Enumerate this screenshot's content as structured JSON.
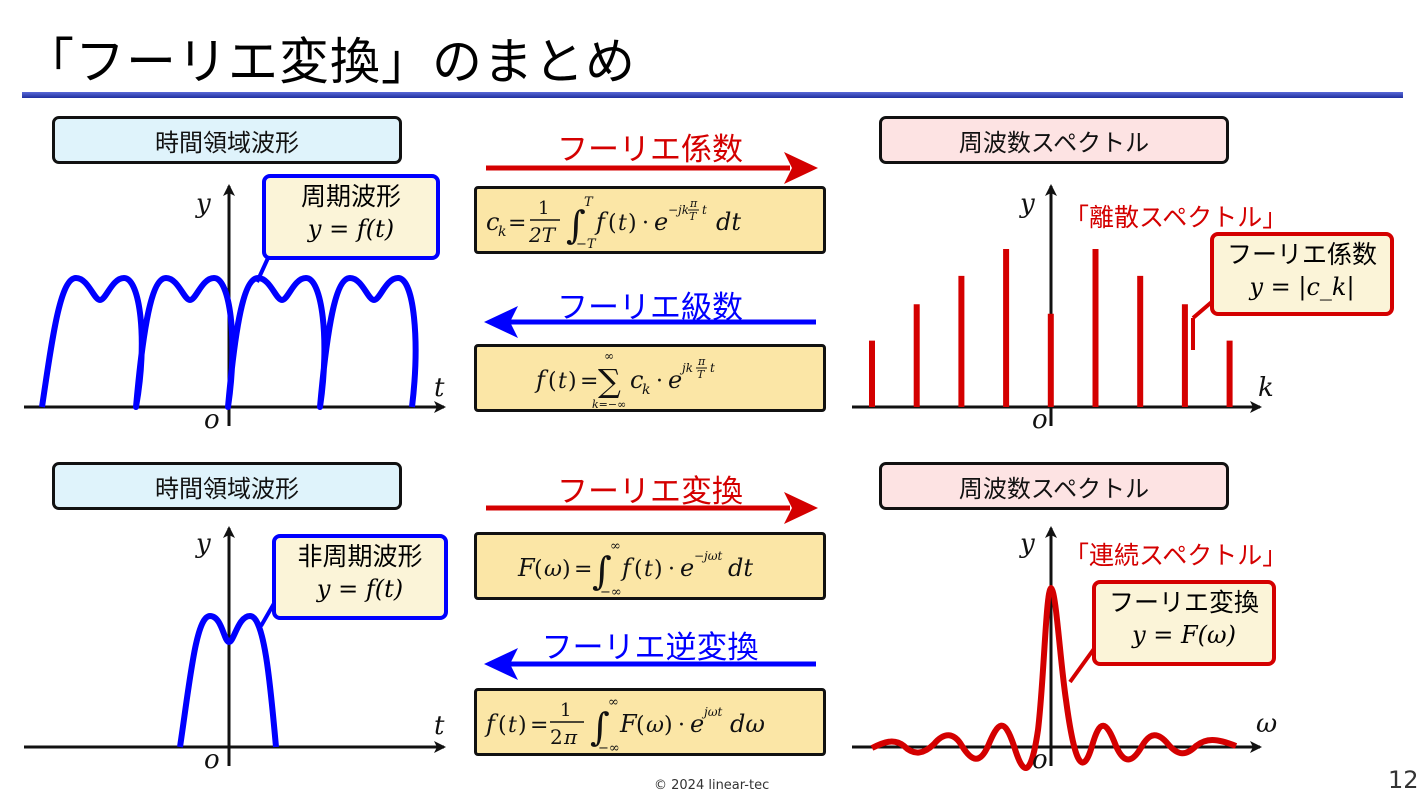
{
  "title": "「フーリエ変換」のまとめ",
  "footer": {
    "copyright": "© 2024 linear-tec",
    "page": "12"
  },
  "top": {
    "time_label": "時間領域波形",
    "freq_label": "周波数スペクトル",
    "forward_label": "フーリエ係数",
    "inverse_label": "フーリエ級数",
    "time_callout": {
      "line1": "周期波形",
      "line2": "y = f(t)"
    },
    "spectrum_title": "「離散スペクトル」",
    "freq_callout": {
      "line1": "フーリエ係数",
      "line2": "y = |c_k|"
    },
    "time_axes": {
      "x": "t",
      "y": "y",
      "origin": "o"
    },
    "freq_axes": {
      "x": "k",
      "y": "y",
      "origin": "o"
    },
    "spectrum_relative_heights": [
      0.42,
      0.65,
      0.83,
      1.0,
      0.59,
      1.0,
      0.83,
      0.65,
      0.42
    ]
  },
  "bottom": {
    "time_label": "時間領域波形",
    "freq_label": "周波数スペクトル",
    "forward_label": "フーリエ変換",
    "inverse_label": "フーリエ逆変換",
    "time_callout": {
      "line1": "非周期波形",
      "line2": "y = f(t)"
    },
    "spectrum_title": "「連続スペクトル」",
    "freq_callout": {
      "line1": "フーリエ変換",
      "line2": "y = F(ω)"
    },
    "time_axes": {
      "x": "t",
      "y": "y",
      "origin": "o"
    },
    "freq_axes": {
      "x": "ω",
      "y": "y",
      "origin": "o"
    }
  },
  "colors": {
    "forward": "#d40000",
    "inverse": "#0000ff",
    "time_box": "#dff3fb",
    "freq_box": "#fde3e3",
    "formula_box": "#fbe6a6"
  }
}
